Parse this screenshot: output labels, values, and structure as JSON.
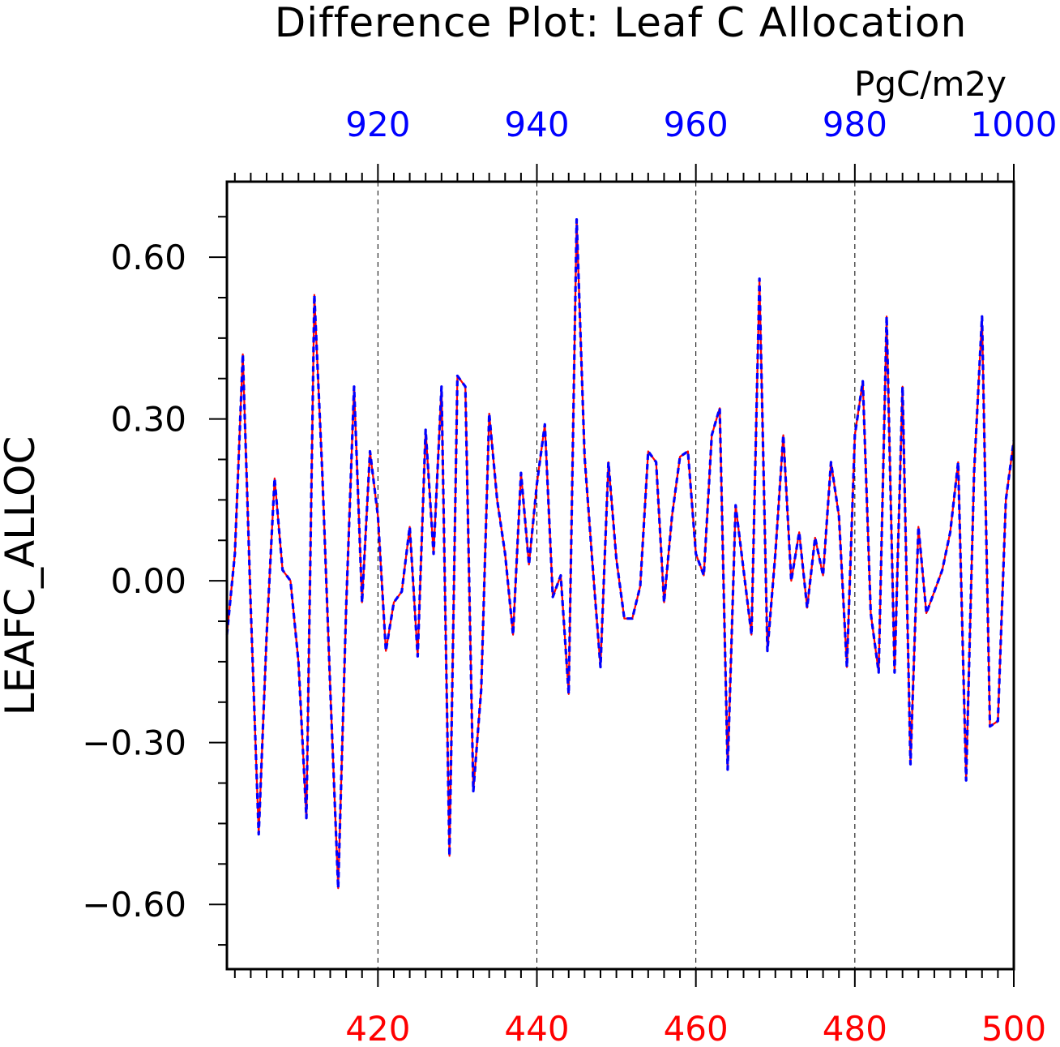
{
  "chart_data": {
    "type": "line",
    "title": "Difference Plot: Leaf C Allocation",
    "units": "PgC/m2y",
    "ylabel": "LEAFC_ALLOC",
    "xlabel": "",
    "ylim": [
      -0.72,
      0.74
    ],
    "grid": "vertical dashed lines at major ticks",
    "bottom_axis": {
      "range": [
        401,
        500
      ],
      "major_ticks": [
        420,
        440,
        460,
        480,
        500
      ],
      "tick_labels": [
        "420",
        "440",
        "460",
        "480",
        "500"
      ],
      "color": "#ff0000"
    },
    "top_axis": {
      "range": [
        901,
        1000
      ],
      "major_ticks": [
        920,
        940,
        960,
        980,
        1000
      ],
      "tick_labels": [
        "920",
        "940",
        "960",
        "980",
        "1000"
      ],
      "color": "#0000ff"
    },
    "y_axis": {
      "major_ticks": [
        0.6,
        0.3,
        0.0,
        -0.3,
        -0.6
      ],
      "tick_labels": [
        "0.60",
        "0.30",
        "0.00",
        "−0.30",
        "−0.60"
      ]
    },
    "x": [
      401,
      402,
      403,
      404,
      405,
      406,
      407,
      408,
      409,
      410,
      411,
      412,
      413,
      414,
      415,
      416,
      417,
      418,
      419,
      420,
      421,
      422,
      423,
      424,
      425,
      426,
      427,
      428,
      429,
      430,
      431,
      432,
      433,
      434,
      435,
      436,
      437,
      438,
      439,
      440,
      441,
      442,
      443,
      444,
      445,
      446,
      447,
      448,
      449,
      450,
      451,
      452,
      453,
      454,
      455,
      456,
      457,
      458,
      459,
      460,
      461,
      462,
      463,
      464,
      465,
      466,
      467,
      468,
      469,
      470,
      471,
      472,
      473,
      474,
      475,
      476,
      477,
      478,
      479,
      480,
      481,
      482,
      483,
      484,
      485,
      486,
      487,
      488,
      489,
      490,
      491,
      492,
      493,
      494,
      495,
      496,
      497,
      498,
      499,
      500
    ],
    "series": [
      {
        "color": "#ff0000",
        "style": "solid",
        "values": [
          -0.1,
          0.05,
          0.42,
          -0.05,
          -0.47,
          -0.1,
          0.19,
          0.02,
          0.0,
          -0.15,
          -0.44,
          0.53,
          0.2,
          -0.2,
          -0.57,
          -0.05,
          0.36,
          -0.04,
          0.24,
          0.12,
          -0.13,
          -0.04,
          -0.02,
          0.1,
          -0.14,
          0.28,
          0.05,
          0.36,
          -0.51,
          0.38,
          0.36,
          -0.39,
          -0.2,
          0.31,
          0.15,
          0.05,
          -0.1,
          0.2,
          0.03,
          0.18,
          0.29,
          -0.03,
          0.01,
          -0.21,
          0.67,
          0.23,
          0.03,
          -0.16,
          0.22,
          0.04,
          -0.07,
          -0.07,
          -0.01,
          0.24,
          0.22,
          -0.04,
          0.12,
          0.23,
          0.24,
          0.05,
          0.01,
          0.27,
          0.32,
          -0.35,
          0.14,
          0.02,
          -0.1,
          0.56,
          -0.13,
          0.05,
          0.27,
          0.0,
          0.09,
          -0.05,
          0.08,
          0.01,
          0.22,
          0.12,
          -0.16,
          0.27,
          0.37,
          -0.06,
          -0.17,
          0.49,
          -0.17,
          0.36,
          -0.34,
          0.1,
          -0.06,
          -0.02,
          0.02,
          0.09,
          0.22,
          -0.37,
          0.2,
          0.49,
          -0.27,
          -0.26,
          0.15,
          0.26
        ]
      },
      {
        "color": "#0000ff",
        "style": "dashed",
        "values": [
          -0.1,
          0.05,
          0.42,
          -0.05,
          -0.47,
          -0.1,
          0.19,
          0.02,
          0.0,
          -0.15,
          -0.44,
          0.53,
          0.2,
          -0.2,
          -0.57,
          -0.05,
          0.36,
          -0.04,
          0.24,
          0.12,
          -0.13,
          -0.04,
          -0.02,
          0.1,
          -0.14,
          0.28,
          0.05,
          0.36,
          -0.51,
          0.38,
          0.36,
          -0.39,
          -0.2,
          0.31,
          0.15,
          0.05,
          -0.1,
          0.2,
          0.03,
          0.18,
          0.29,
          -0.03,
          0.01,
          -0.21,
          0.67,
          0.23,
          0.03,
          -0.16,
          0.22,
          0.04,
          -0.07,
          -0.07,
          -0.01,
          0.24,
          0.22,
          -0.04,
          0.12,
          0.23,
          0.24,
          0.05,
          0.01,
          0.27,
          0.32,
          -0.35,
          0.14,
          0.02,
          -0.1,
          0.56,
          -0.13,
          0.05,
          0.27,
          0.0,
          0.09,
          -0.05,
          0.08,
          0.01,
          0.22,
          0.12,
          -0.16,
          0.27,
          0.37,
          -0.06,
          -0.17,
          0.49,
          -0.17,
          0.36,
          -0.34,
          0.1,
          -0.06,
          -0.02,
          0.02,
          0.09,
          0.22,
          -0.37,
          0.2,
          0.49,
          -0.27,
          -0.26,
          0.15,
          0.26
        ]
      }
    ]
  }
}
